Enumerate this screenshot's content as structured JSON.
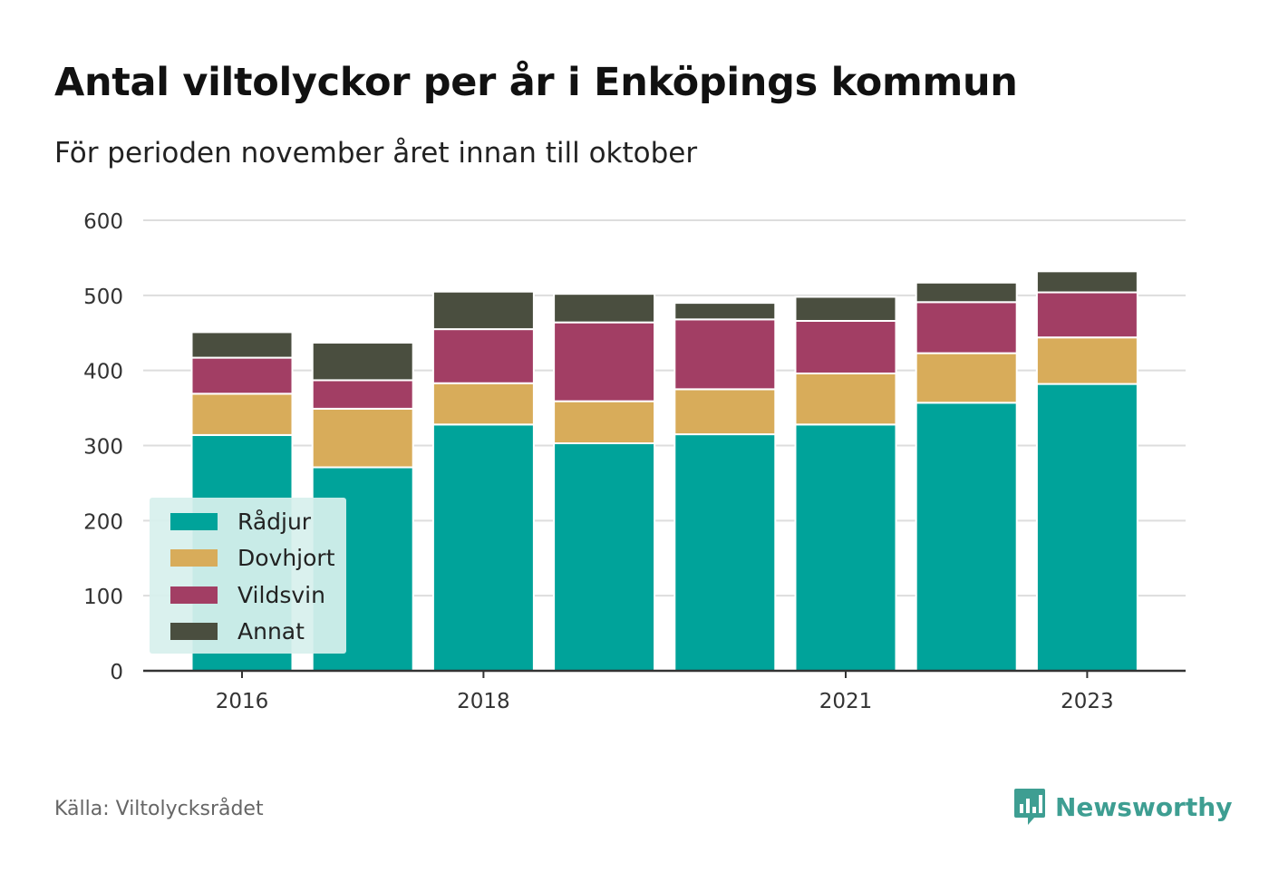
{
  "header": {
    "title": "Antal viltolyckor per år i Enköpings kommun",
    "subtitle": "För perioden november året innan till oktober"
  },
  "footer": {
    "source": "Källa: Viltolycksrådet",
    "brand": "Newsworthy",
    "brand_icon": "bar-chart-speech-bubble-icon"
  },
  "chart_data": {
    "type": "bar",
    "stacked": true,
    "categories": [
      "2016",
      "2017",
      "2018",
      "2019",
      "2020",
      "2021",
      "2022",
      "2023"
    ],
    "x_tick_labels": [
      "2016",
      "",
      "2018",
      "",
      "",
      "2021",
      "",
      "2023"
    ],
    "y_ticks": [
      "0",
      "100",
      "200",
      "300",
      "400",
      "500",
      "600"
    ],
    "ylim": [
      0,
      600
    ],
    "grid": true,
    "legend_position": "bottom-left",
    "series": [
      {
        "name": "Rådjur",
        "color": "#00a39a",
        "values": [
          314,
          271,
          328,
          303,
          315,
          328,
          357,
          382
        ]
      },
      {
        "name": "Dovhjort",
        "color": "#d8ac5a",
        "values": [
          55,
          78,
          55,
          56,
          60,
          68,
          66,
          62
        ]
      },
      {
        "name": "Vildsvin",
        "color": "#a23e64",
        "values": [
          48,
          38,
          72,
          105,
          93,
          70,
          68,
          60
        ]
      },
      {
        "name": "Annat",
        "color": "#4a4e3f",
        "values": [
          34,
          50,
          50,
          38,
          22,
          32,
          26,
          28
        ]
      }
    ]
  }
}
